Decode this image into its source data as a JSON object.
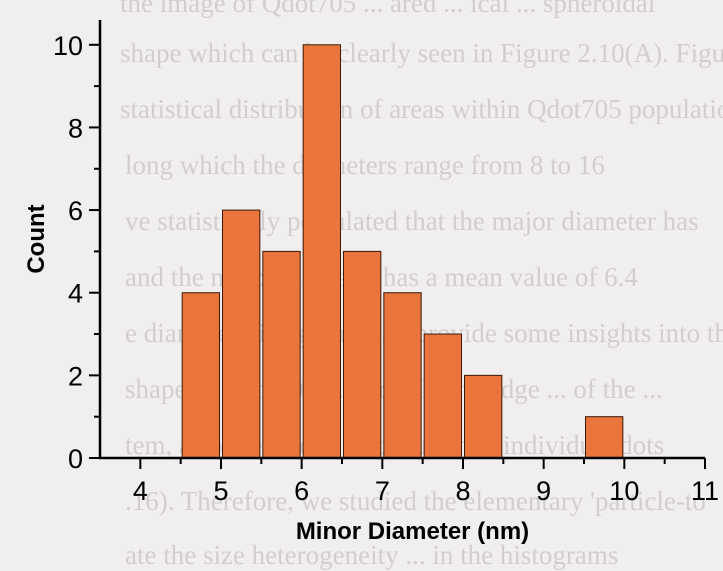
{
  "background_text": {
    "lines": [
      "the image of Qdot705 ... ared ... ical ... spheroidal",
      "shape which can be clearly seen in Figure 2.10(A). Figure",
      "statistical distribution of areas within Qdot705 population",
      "long which the diameters range from 8 to 16",
      "ve statistically postulated that the major diameter has",
      "and the minor diameter has a mean value of 6.4",
      "e diameter histograms can provide some insights into th",
      "shape of Qdot705 ... to our knowledge ... of the ...",
      "tem, also the size ... distribution ... individual dots",
      ".16). Therefore, we studied the elementary 'particle-to",
      "ate the size heterogeneity ... in the histograms"
    ]
  },
  "chart_data": {
    "type": "bar",
    "xlabel": "Minor Diameter (nm)",
    "ylabel": "Count",
    "xlim": [
      3.5,
      11
    ],
    "ylim": [
      0,
      10.6
    ],
    "xticks": [
      4,
      5,
      6,
      7,
      8,
      9,
      10,
      11
    ],
    "yticks": [
      0,
      2,
      4,
      6,
      8,
      10
    ],
    "bin_width": 0.5,
    "bars": [
      {
        "x": 4.75,
        "value": 4
      },
      {
        "x": 5.25,
        "value": 6
      },
      {
        "x": 5.75,
        "value": 5
      },
      {
        "x": 6.25,
        "value": 10
      },
      {
        "x": 6.75,
        "value": 5
      },
      {
        "x": 7.25,
        "value": 4
      },
      {
        "x": 7.75,
        "value": 3
      },
      {
        "x": 8.25,
        "value": 2
      },
      {
        "x": 8.75,
        "value": 0
      },
      {
        "x": 9.25,
        "value": 0
      },
      {
        "x": 9.75,
        "value": 1
      }
    ],
    "bar_color": "#e9743c",
    "bar_edge_color": "#3a1a08",
    "grid": false,
    "legend": "none"
  }
}
